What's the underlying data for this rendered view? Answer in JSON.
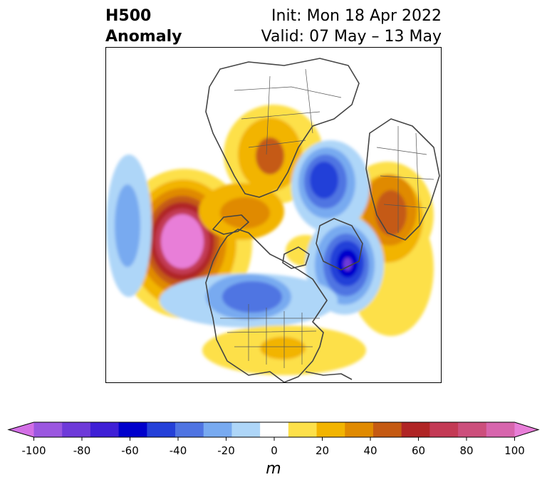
{
  "title": {
    "left_line1": "H500",
    "left_line2": "Anomaly",
    "right_line1": "Init: Mon 18 Apr 2022",
    "right_line2": "Valid: 07 May – 13 May"
  },
  "colorbar": {
    "unit": "m",
    "ticks": [
      "-100",
      "-80",
      "-60",
      "-40",
      "-20",
      "0",
      "20",
      "40",
      "60",
      "80",
      "100"
    ],
    "colors": [
      "#d36fe6",
      "#9b57e0",
      "#6e3ad9",
      "#3f1fd6",
      "#0000cc",
      "#2440d8",
      "#4f74e2",
      "#78aaf0",
      "#aed6f8",
      "#ffffff",
      "#fde04a",
      "#f2b400",
      "#e08a00",
      "#c55a12",
      "#b02525",
      "#c33a55",
      "#cc4f7c",
      "#d765ad",
      "#e87ed8"
    ]
  }
}
